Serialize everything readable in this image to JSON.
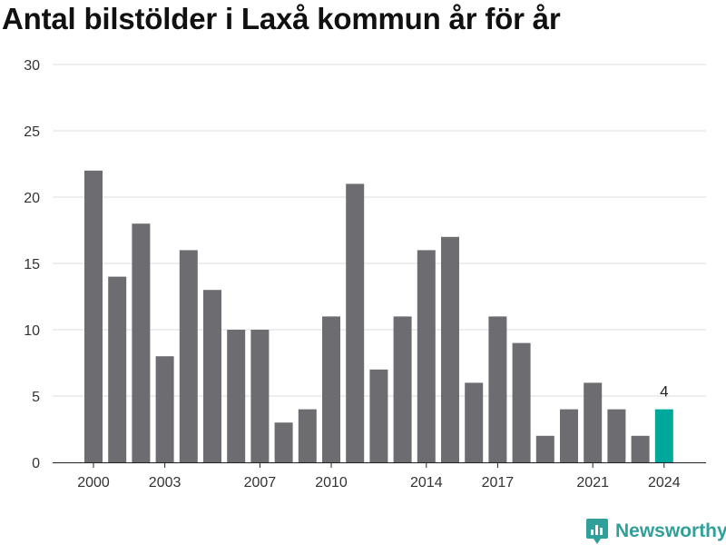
{
  "chart_data": {
    "type": "bar",
    "title": "Antal bilstölder i Laxå kommun år för år",
    "categories": [
      "2000",
      "2001",
      "2002",
      "2003",
      "2004",
      "2005",
      "2006",
      "2007",
      "2008",
      "2009",
      "2010",
      "2011",
      "2012",
      "2013",
      "2014",
      "2015",
      "2016",
      "2017",
      "2018",
      "2019",
      "2020",
      "2021",
      "2022",
      "2023",
      "2024"
    ],
    "values": [
      22,
      14,
      18,
      8,
      16,
      13,
      10,
      10,
      3,
      4,
      11,
      21,
      7,
      11,
      16,
      17,
      6,
      11,
      9,
      2,
      4,
      6,
      4,
      2,
      4
    ],
    "x_tick_labels": [
      "2000",
      "2003",
      "2007",
      "2010",
      "2014",
      "2017",
      "2021",
      "2024"
    ],
    "y_ticks": [
      0,
      5,
      10,
      15,
      20,
      25,
      30
    ],
    "ylim": [
      0,
      30
    ],
    "grid": true,
    "bar_color": "#6d6c70",
    "highlight_color": "#00a79b",
    "highlight_index": 24,
    "highlight_label": "4"
  },
  "brand": {
    "name": "Newsworthy",
    "color": "#2fa09a",
    "icon": "newsworthy-logo-icon"
  }
}
